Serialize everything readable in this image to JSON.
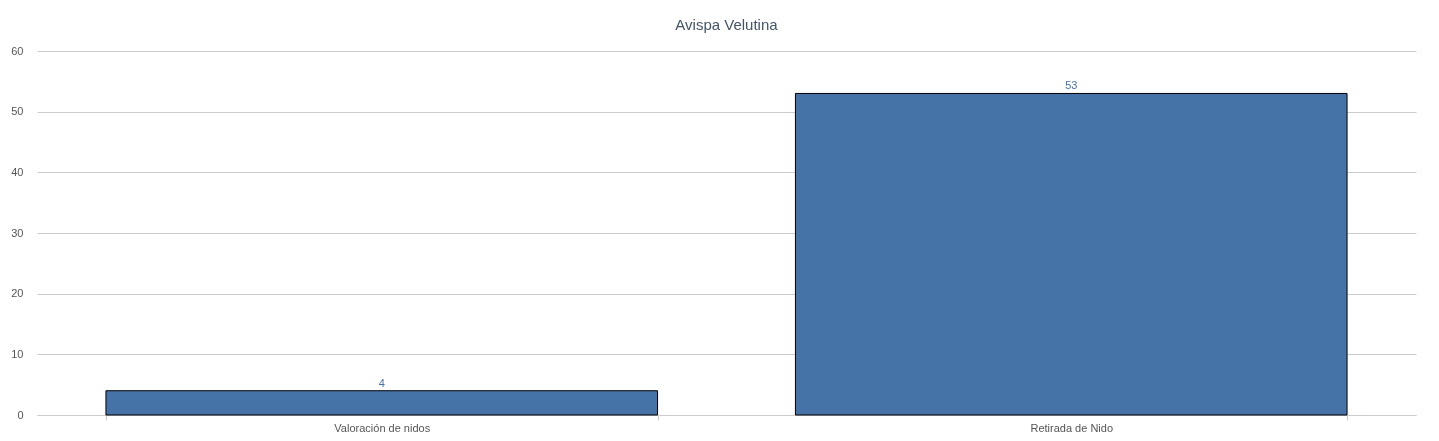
{
  "chart_data": {
    "type": "bar",
    "title": "Avispa Velutina",
    "categories": [
      "Valoración de nidos",
      "Retirada de Nido"
    ],
    "values": [
      4,
      53
    ],
    "color": "#4573a7",
    "ylim": [
      0,
      60
    ],
    "yticks": [
      0,
      10,
      20,
      30,
      40,
      50,
      60
    ],
    "grid": "y",
    "data_labels": true
  }
}
